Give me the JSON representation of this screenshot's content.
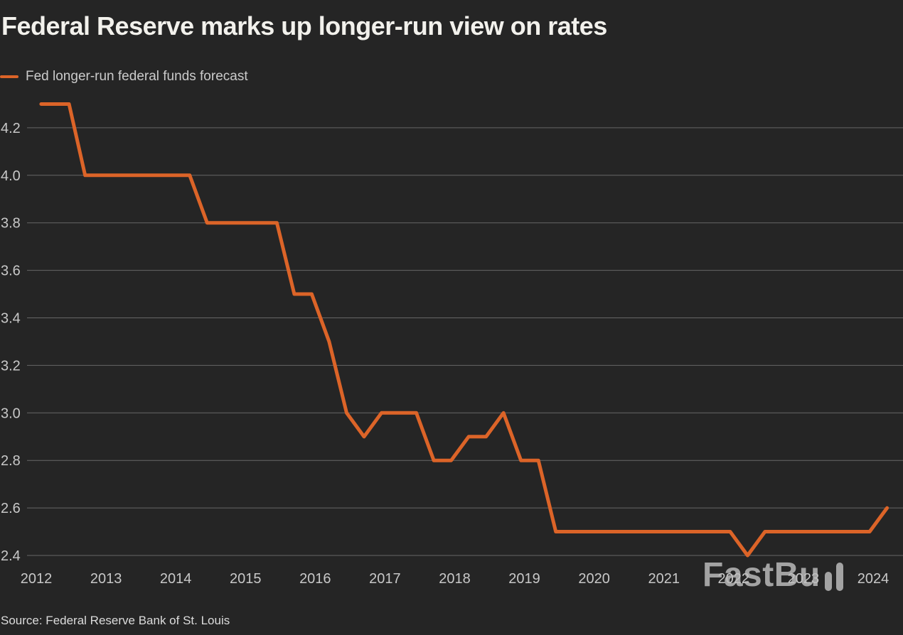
{
  "header": {
    "title": "Federal Reserve marks up longer-run view on rates"
  },
  "legend": {
    "label": "Fed longer-run federal funds forecast",
    "color": "#DC6428"
  },
  "watermark": {
    "text": "FastBull"
  },
  "footer": {
    "source": "Source: Federal Reserve Bank of St. Louis"
  },
  "colors": {
    "background": "#252525",
    "line": "#DC6428",
    "grid": "#666666",
    "title_text": "#F2F1EC",
    "tick_text": "#C8C8C8",
    "legend_text": "#CBCBCB",
    "source_text": "#DCDCDC",
    "watermark_text": "#C0C0C0"
  },
  "chart_data": {
    "type": "line",
    "title": "Federal Reserve marks up longer-run view on rates",
    "xlabel": "",
    "ylabel": "",
    "grid": true,
    "legend_position": "top-left",
    "xlim": [
      2011.95,
      2024.45
    ],
    "ylim": [
      2.4,
      4.35
    ],
    "x_ticks": [
      2012,
      2013,
      2014,
      2015,
      2016,
      2017,
      2018,
      2019,
      2020,
      2021,
      2022,
      2023,
      2024
    ],
    "y_ticks": [
      4.2,
      4.0,
      3.8,
      3.6,
      3.4,
      3.2,
      3.0,
      2.8,
      2.6,
      2.4
    ],
    "series": [
      {
        "name": "Fed longer-run federal funds forecast",
        "color": "#DC6428",
        "points": [
          [
            2012.07,
            4.3
          ],
          [
            2012.3,
            4.3
          ],
          [
            2012.47,
            4.3
          ],
          [
            2012.7,
            4.0
          ],
          [
            2012.95,
            4.0
          ],
          [
            2013.2,
            4.0
          ],
          [
            2013.45,
            4.0
          ],
          [
            2013.7,
            4.0
          ],
          [
            2013.95,
            4.0
          ],
          [
            2014.2,
            4.0
          ],
          [
            2014.45,
            3.8
          ],
          [
            2014.7,
            3.8
          ],
          [
            2014.95,
            3.8
          ],
          [
            2015.2,
            3.8
          ],
          [
            2015.45,
            3.8
          ],
          [
            2015.7,
            3.5
          ],
          [
            2015.95,
            3.5
          ],
          [
            2016.2,
            3.3
          ],
          [
            2016.45,
            3.0
          ],
          [
            2016.7,
            2.9
          ],
          [
            2016.95,
            3.0
          ],
          [
            2017.2,
            3.0
          ],
          [
            2017.45,
            3.0
          ],
          [
            2017.7,
            2.8
          ],
          [
            2017.95,
            2.8
          ],
          [
            2018.2,
            2.9
          ],
          [
            2018.45,
            2.9
          ],
          [
            2018.7,
            3.0
          ],
          [
            2018.95,
            2.8
          ],
          [
            2019.2,
            2.8
          ],
          [
            2019.45,
            2.5
          ],
          [
            2019.7,
            2.5
          ],
          [
            2019.95,
            2.5
          ],
          [
            2020.45,
            2.5
          ],
          [
            2020.7,
            2.5
          ],
          [
            2020.95,
            2.5
          ],
          [
            2021.2,
            2.5
          ],
          [
            2021.45,
            2.5
          ],
          [
            2021.7,
            2.5
          ],
          [
            2021.95,
            2.5
          ],
          [
            2022.2,
            2.4
          ],
          [
            2022.45,
            2.5
          ],
          [
            2022.7,
            2.5
          ],
          [
            2022.95,
            2.5
          ],
          [
            2023.2,
            2.5
          ],
          [
            2023.45,
            2.5
          ],
          [
            2023.7,
            2.5
          ],
          [
            2023.95,
            2.5
          ],
          [
            2024.2,
            2.6
          ]
        ]
      }
    ]
  }
}
